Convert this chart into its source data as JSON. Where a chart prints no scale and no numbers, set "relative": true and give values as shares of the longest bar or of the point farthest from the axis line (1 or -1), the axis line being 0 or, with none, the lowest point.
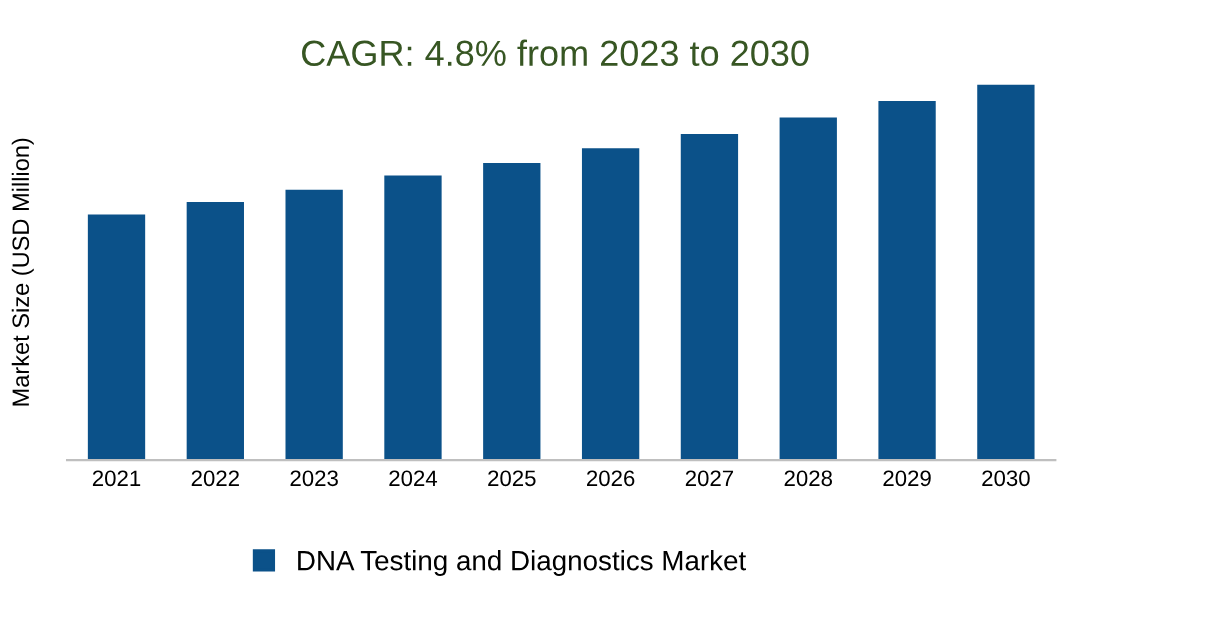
{
  "chart_data": {
    "type": "bar",
    "title": "CAGR: 4.8% from 2023 to 2030",
    "ylabel": "Market Size (USD Million)",
    "categories": [
      "2021",
      "2022",
      "2023",
      "2024",
      "2025",
      "2026",
      "2027",
      "2028",
      "2029",
      "2030"
    ],
    "series": [
      {
        "name": "DNA Testing and Diagnostics Market",
        "color": "#0b5189",
        "values": [
          0.654,
          0.687,
          0.72,
          0.758,
          0.791,
          0.83,
          0.868,
          0.912,
          0.956,
          1
        ]
      }
    ],
    "relative": true,
    "legend": "bottom",
    "grid": false
  }
}
